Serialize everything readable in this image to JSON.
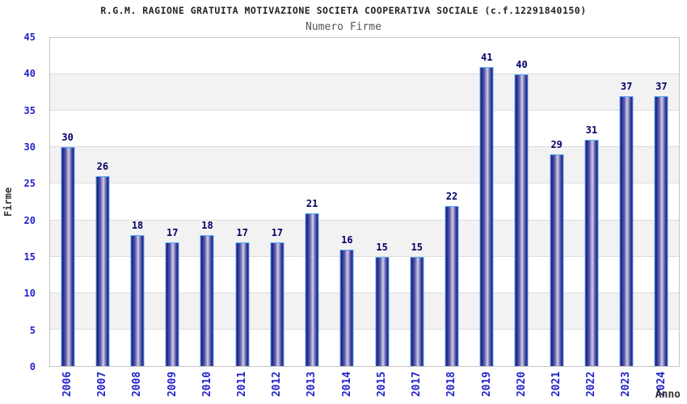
{
  "title": "R.G.M. RAGIONE GRATUITA MOTIVAZIONE SOCIETA COOPERATIVA SOCIALE (c.f.12291840150)",
  "subtitle": "Numero Firme",
  "chart_data": {
    "type": "bar",
    "title": "Numero Firme",
    "categories": [
      "2006",
      "2007",
      "2008",
      "2009",
      "2010",
      "2011",
      "2012",
      "2013",
      "2014",
      "2015",
      "2017",
      "2018",
      "2019",
      "2020",
      "2021",
      "2022",
      "2023",
      "2024"
    ],
    "values": [
      30,
      26,
      18,
      17,
      18,
      17,
      17,
      21,
      16,
      15,
      15,
      22,
      41,
      40,
      29,
      31,
      37,
      37
    ],
    "xlabel": "Anno",
    "ylabel": "Firme",
    "ylim": [
      0,
      45
    ],
    "ytick_step": 5,
    "yticks": [
      0,
      5,
      10,
      15,
      20,
      25,
      30,
      35,
      40,
      45
    ],
    "grid": "horizontal gridlines every 5 with alternating white/gray bands",
    "legend_position": "none",
    "bar_labels_shown": true
  },
  "colors": {
    "bar_dark": "#1b1b78",
    "bar_light": "#d2d2ea",
    "bar_outline": "#55aaff",
    "value_label": "#000066",
    "axis_tick_label": "#2222cc",
    "band_gray": "#f2f2f2",
    "gridline": "#dcdcdc",
    "plot_border": "#c4c4c4",
    "title_text": "#222222",
    "subtitle_text": "#555555"
  }
}
